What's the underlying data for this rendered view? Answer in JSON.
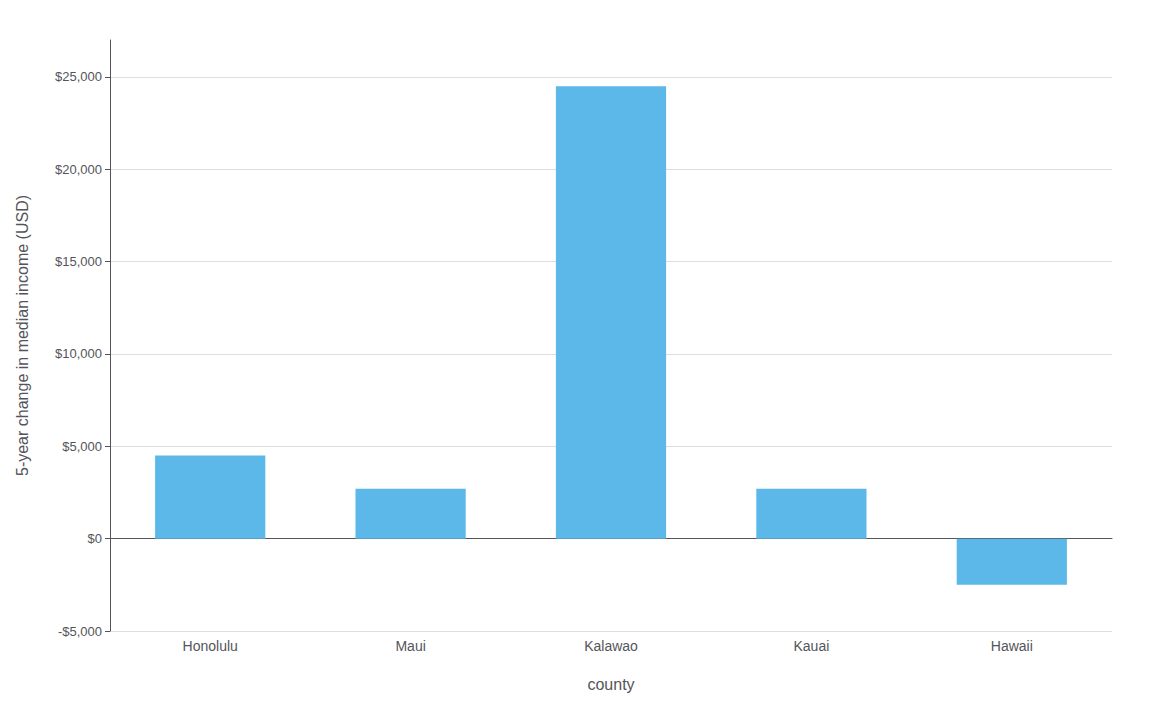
{
  "chart_data": {
    "type": "bar",
    "categories": [
      "Honolulu",
      "Maui",
      "Kalawao",
      "Kauai",
      "Hawaii"
    ],
    "values": [
      4500,
      2700,
      24500,
      2700,
      -2500
    ],
    "color": "#5BB8E8",
    "xlabel": "county",
    "ylabel": "5-year change in median income (USD)",
    "ylim": [
      -5000,
      27000
    ],
    "yticks": [
      {
        "value": -5000,
        "label": "-$5,000"
      },
      {
        "value": 0,
        "label": "$0"
      },
      {
        "value": 5000,
        "label": "$5,000"
      },
      {
        "value": 10000,
        "label": "$10,000"
      },
      {
        "value": 15000,
        "label": "$15,000"
      },
      {
        "value": 20000,
        "label": "$20,000"
      },
      {
        "value": 25000,
        "label": "$25,000"
      }
    ],
    "grid": true
  }
}
